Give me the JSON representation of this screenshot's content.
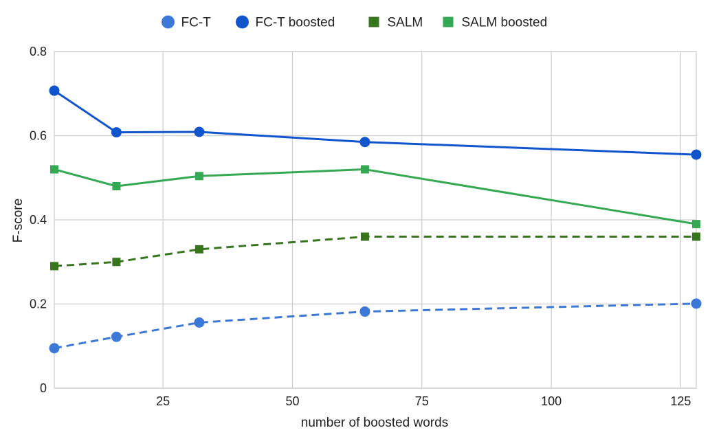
{
  "chart_data": {
    "type": "line",
    "title": "",
    "xlabel": "number of boosted words",
    "ylabel": "F-score",
    "xlim": [
      4,
      128
    ],
    "ylim": [
      0,
      0.8
    ],
    "x_ticks": [
      25,
      50,
      75,
      100,
      125
    ],
    "x_tick_labels": [
      "25",
      "50",
      "75",
      "100",
      "125"
    ],
    "y_ticks": [
      0,
      0.2,
      0.4,
      0.6,
      0.8
    ],
    "y_tick_labels": [
      "0",
      "0.2",
      "0.4",
      "0.6",
      "0.8"
    ],
    "grid": true,
    "legend_position": "top",
    "x": [
      4,
      16,
      32,
      64,
      128
    ],
    "series": [
      {
        "name": "FC-T",
        "values": [
          0.095,
          0.122,
          0.156,
          0.182,
          0.201
        ],
        "color": "#3c78d8",
        "marker": "circle",
        "dash": "dashed"
      },
      {
        "name": "FC-T boosted",
        "values": [
          0.707,
          0.608,
          0.609,
          0.585,
          0.555
        ],
        "color": "#1155cc",
        "marker": "circle",
        "dash": "solid"
      },
      {
        "name": "SALM",
        "values": [
          0.29,
          0.3,
          0.33,
          0.36,
          0.36
        ],
        "color": "#38761d",
        "marker": "square",
        "dash": "dashed"
      },
      {
        "name": "SALM boosted",
        "values": [
          0.52,
          0.48,
          0.504,
          0.52,
          0.39
        ],
        "color": "#34a853",
        "marker": "square",
        "dash": "solid"
      }
    ]
  }
}
